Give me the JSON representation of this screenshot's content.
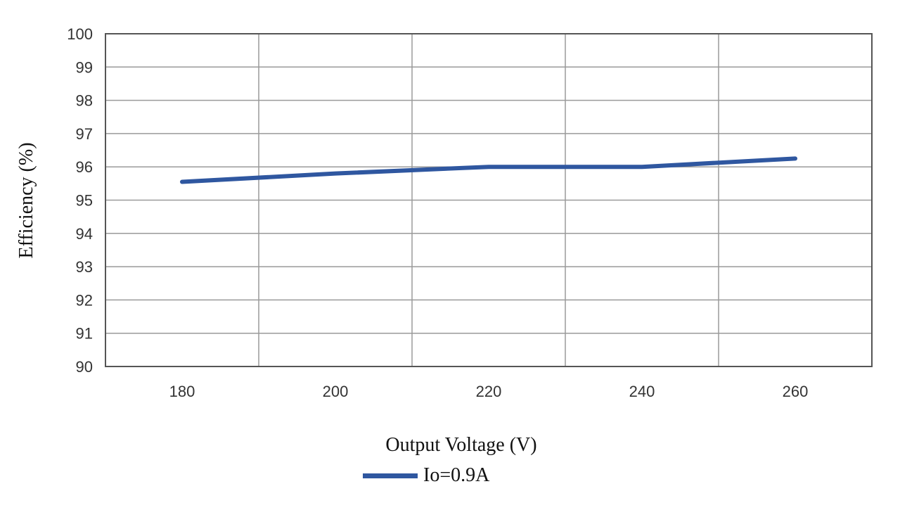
{
  "chart_data": {
    "type": "line",
    "title": "",
    "xlabel": "Output Voltage (V)",
    "ylabel": "Efficiency (%)",
    "xlim": [
      170,
      270
    ],
    "ylim": [
      90,
      100
    ],
    "x_ticks": [
      "180",
      "200",
      "220",
      "240",
      "260"
    ],
    "y_ticks": [
      "100",
      "99",
      "98",
      "97",
      "96",
      "95",
      "94",
      "93",
      "92",
      "91",
      "90"
    ],
    "grid": true,
    "legend_position": "bottom",
    "x": [
      180,
      200,
      220,
      240,
      260
    ],
    "series": [
      {
        "name": "Io=0.9A",
        "color": "#2f57a0",
        "values": [
          95.55,
          95.8,
          96.0,
          96.0,
          96.25
        ]
      }
    ]
  },
  "legend": {
    "label": "Io=0.9A"
  }
}
